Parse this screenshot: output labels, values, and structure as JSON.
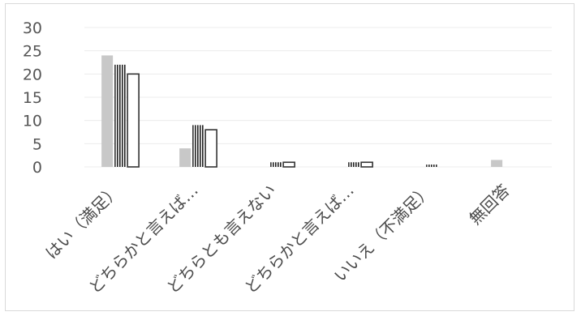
{
  "chart_data": {
    "type": "bar",
    "categories": [
      "はい（満足）",
      "どちらかと言えば…",
      "どちらとも言えない",
      "どちらかと言えば…",
      "いいえ（不満足）",
      "無回答"
    ],
    "series": [
      {
        "values": [
          24,
          4,
          0,
          0,
          0,
          1.5
        ],
        "style": "solid-gray"
      },
      {
        "values": [
          22,
          9,
          1,
          1,
          0.5,
          0
        ],
        "style": "striped-dark"
      },
      {
        "values": [
          20,
          8,
          1,
          1,
          0,
          0
        ],
        "style": "white-outlined"
      }
    ],
    "yticks": [
      "0",
      "5",
      "10",
      "15",
      "20",
      "25",
      "30"
    ],
    "ylim": [
      0,
      30
    ],
    "grid": true,
    "legend": "none",
    "colors": {
      "solid": "#c8c8c8",
      "stripe": "#222222",
      "outline": "#333333",
      "grid": "#ececec"
    }
  }
}
